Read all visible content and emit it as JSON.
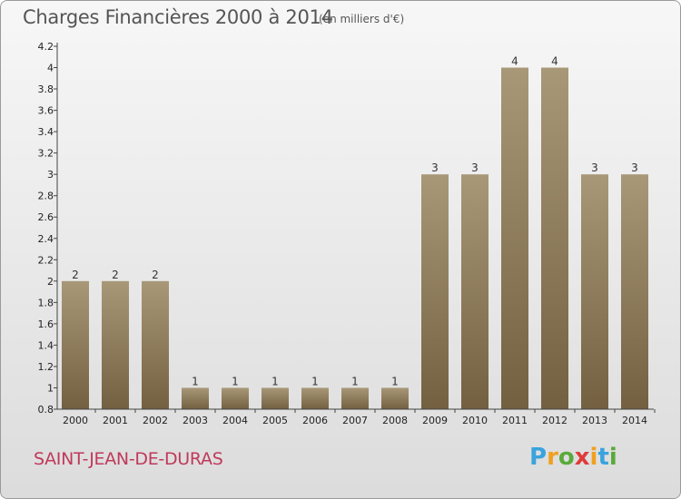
{
  "header": {
    "title": "Charges Financières 2000 à 2014",
    "subtitle": "(en milliers d'€)"
  },
  "footer": {
    "commune": "SAINT-JEAN-DE-DURAS",
    "logo_letters": [
      "P",
      "r",
      "o",
      "x",
      "i",
      "t",
      "i"
    ],
    "logo_colors": [
      "#3aa3de",
      "#f0a020",
      "#5aaa3c",
      "#e03a3a",
      "#f0a020",
      "#3aa3de",
      "#5aaa3c"
    ]
  },
  "colors": {
    "bar_top": "#a89878",
    "bar_bottom": "#736040",
    "axis": "#444444"
  },
  "chart_data": {
    "type": "bar",
    "title": "Charges Financières 2000 à 2014",
    "subtitle": "(en milliers d'€)",
    "categories": [
      "2000",
      "2001",
      "2002",
      "2003",
      "2004",
      "2005",
      "2006",
      "2007",
      "2008",
      "2009",
      "2010",
      "2011",
      "2012",
      "2013",
      "2014"
    ],
    "values": [
      2,
      2,
      2,
      1,
      1,
      1,
      1,
      1,
      1,
      3,
      3,
      4,
      4,
      3,
      3
    ],
    "ylim": [
      0.8,
      4.2
    ],
    "yticks": [
      "0.8",
      "1",
      "1.2",
      "1.4",
      "1.6",
      "1.8",
      "2",
      "2.2",
      "2.4",
      "2.6",
      "2.8",
      "3",
      "3.2",
      "3.4",
      "3.6",
      "3.8",
      "4",
      "4.2"
    ],
    "xlabel": "",
    "ylabel": "",
    "grid": false,
    "legend": "none"
  }
}
